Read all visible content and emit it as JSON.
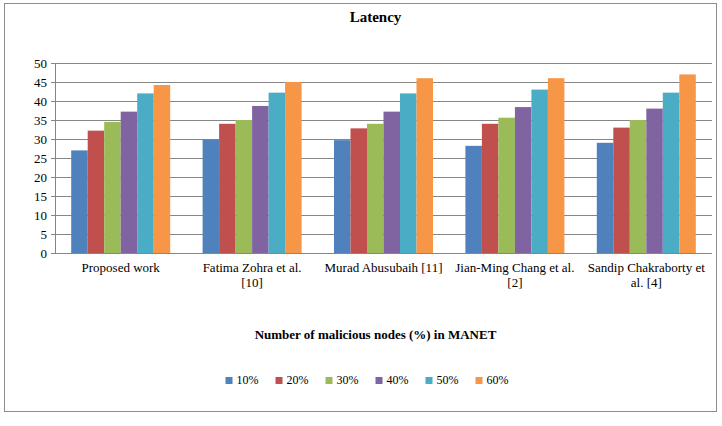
{
  "chart_data": {
    "type": "bar",
    "title": "Latency",
    "x_label": "Number of malicious nodes (%) in MANET",
    "categories": [
      "Proposed work",
      "Fatima Zohra et al. [10]",
      "Murad Abusubaih [11]",
      "Jian-Ming Chang et al. [2]",
      "Sandip Chakraborty et al. [4]"
    ],
    "series": [
      {
        "name": "10%",
        "color": "#4f81bd",
        "values": [
          27,
          29.8,
          29.7,
          28.2,
          29
        ]
      },
      {
        "name": "20%",
        "color": "#c0504d",
        "values": [
          32.2,
          34,
          32.8,
          34,
          33
        ]
      },
      {
        "name": "30%",
        "color": "#9bbb59",
        "values": [
          34.5,
          35,
          34,
          35.6,
          35
        ]
      },
      {
        "name": "40%",
        "color": "#8064a2",
        "values": [
          37.2,
          38.7,
          37.2,
          38.4,
          38
        ]
      },
      {
        "name": "50%",
        "color": "#4bacc6",
        "values": [
          42,
          42.2,
          42,
          43,
          42.2
        ]
      },
      {
        "name": "60%",
        "color": "#f79646",
        "values": [
          44.2,
          45,
          46,
          46,
          47
        ]
      }
    ],
    "ylim": [
      0,
      50
    ],
    "yticks": [
      0,
      5,
      10,
      15,
      20,
      25,
      30,
      35,
      40,
      45,
      50
    ],
    "grid": true,
    "legend": "bottom"
  }
}
